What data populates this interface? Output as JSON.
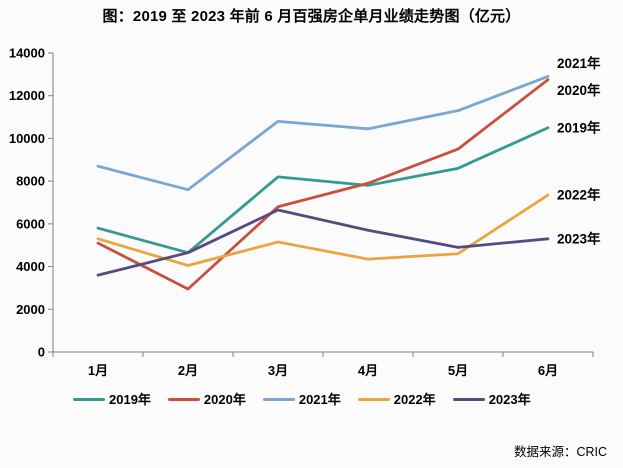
{
  "page": {
    "footer_source": "数据来源：CRIC"
  },
  "chart_data": {
    "type": "line",
    "title": "图：2019 至 2023 年前 6 月百强房企单月业绩走势图（亿元）",
    "unit": "亿元",
    "categories": [
      "1月",
      "2月",
      "3月",
      "4月",
      "5月",
      "6月"
    ],
    "series": [
      {
        "name": "2019年",
        "color": "#359b8e",
        "values": [
          5800,
          4650,
          8200,
          7800,
          8600,
          10500
        ],
        "end_label_dy": 0
      },
      {
        "name": "2020年",
        "color": "#c8503f",
        "values": [
          5100,
          2950,
          6800,
          7900,
          9500,
          12750
        ],
        "end_label_dy": 11
      },
      {
        "name": "2021年",
        "color": "#7aa6d2",
        "values": [
          8700,
          7600,
          10800,
          10450,
          11300,
          12900
        ],
        "end_label_dy": -13
      },
      {
        "name": "2022年",
        "color": "#e9a63f",
        "values": [
          5300,
          4050,
          5150,
          4350,
          4600,
          7350
        ],
        "end_label_dy": 0
      },
      {
        "name": "2023年",
        "color": "#564a80",
        "values": [
          3600,
          4650,
          6650,
          5700,
          4900,
          5300
        ],
        "end_label_dy": 0
      }
    ],
    "ylim": [
      0,
      14000
    ],
    "ytick_step": 2000,
    "grid": false,
    "legend_position": "bottom",
    "series_end_labels": true,
    "axis_color": "#7f7f7f"
  }
}
